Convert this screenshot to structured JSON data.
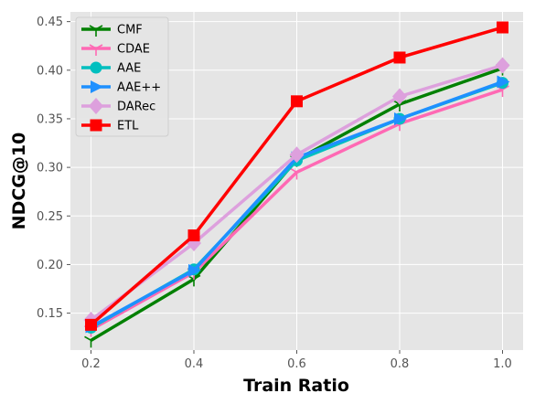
{
  "chart_data": {
    "type": "line",
    "title": "",
    "xlabel": "Train Ratio",
    "ylabel": "NDCG@10",
    "x": [
      0.2,
      0.4,
      0.6,
      0.8,
      1.0
    ],
    "x_ticks": [
      "0.2",
      "0.4",
      "0.6",
      "0.8",
      "1.0"
    ],
    "xlim": [
      0.16,
      1.04
    ],
    "y_ticks": [
      "0.15",
      "0.20",
      "0.25",
      "0.30",
      "0.35",
      "0.40",
      "0.45"
    ],
    "ylim": [
      0.112,
      0.46
    ],
    "grid": true,
    "legend_position": "top-left",
    "series": [
      {
        "name": "CMF",
        "color": "#008000",
        "marker": "tri_down",
        "values": [
          0.122,
          0.185,
          0.308,
          0.365,
          0.402
        ]
      },
      {
        "name": "CDAE",
        "color": "#ff69b4",
        "marker": "tri_down",
        "values": [
          0.133,
          0.192,
          0.295,
          0.345,
          0.38
        ]
      },
      {
        "name": "AAE",
        "color": "#00bfbf",
        "marker": "circle",
        "values": [
          0.135,
          0.195,
          0.307,
          0.35,
          0.387
        ]
      },
      {
        "name": "AAE++",
        "color": "#1e90ff",
        "marker": "triangle-right",
        "values": [
          0.136,
          0.194,
          0.31,
          0.35,
          0.388
        ]
      },
      {
        "name": "DARec",
        "color": "#dda0dd",
        "marker": "diamond",
        "values": [
          0.143,
          0.222,
          0.313,
          0.373,
          0.405
        ]
      },
      {
        "name": "ETL",
        "color": "#ff0000",
        "marker": "square",
        "values": [
          0.138,
          0.23,
          0.368,
          0.413,
          0.444
        ]
      }
    ]
  }
}
